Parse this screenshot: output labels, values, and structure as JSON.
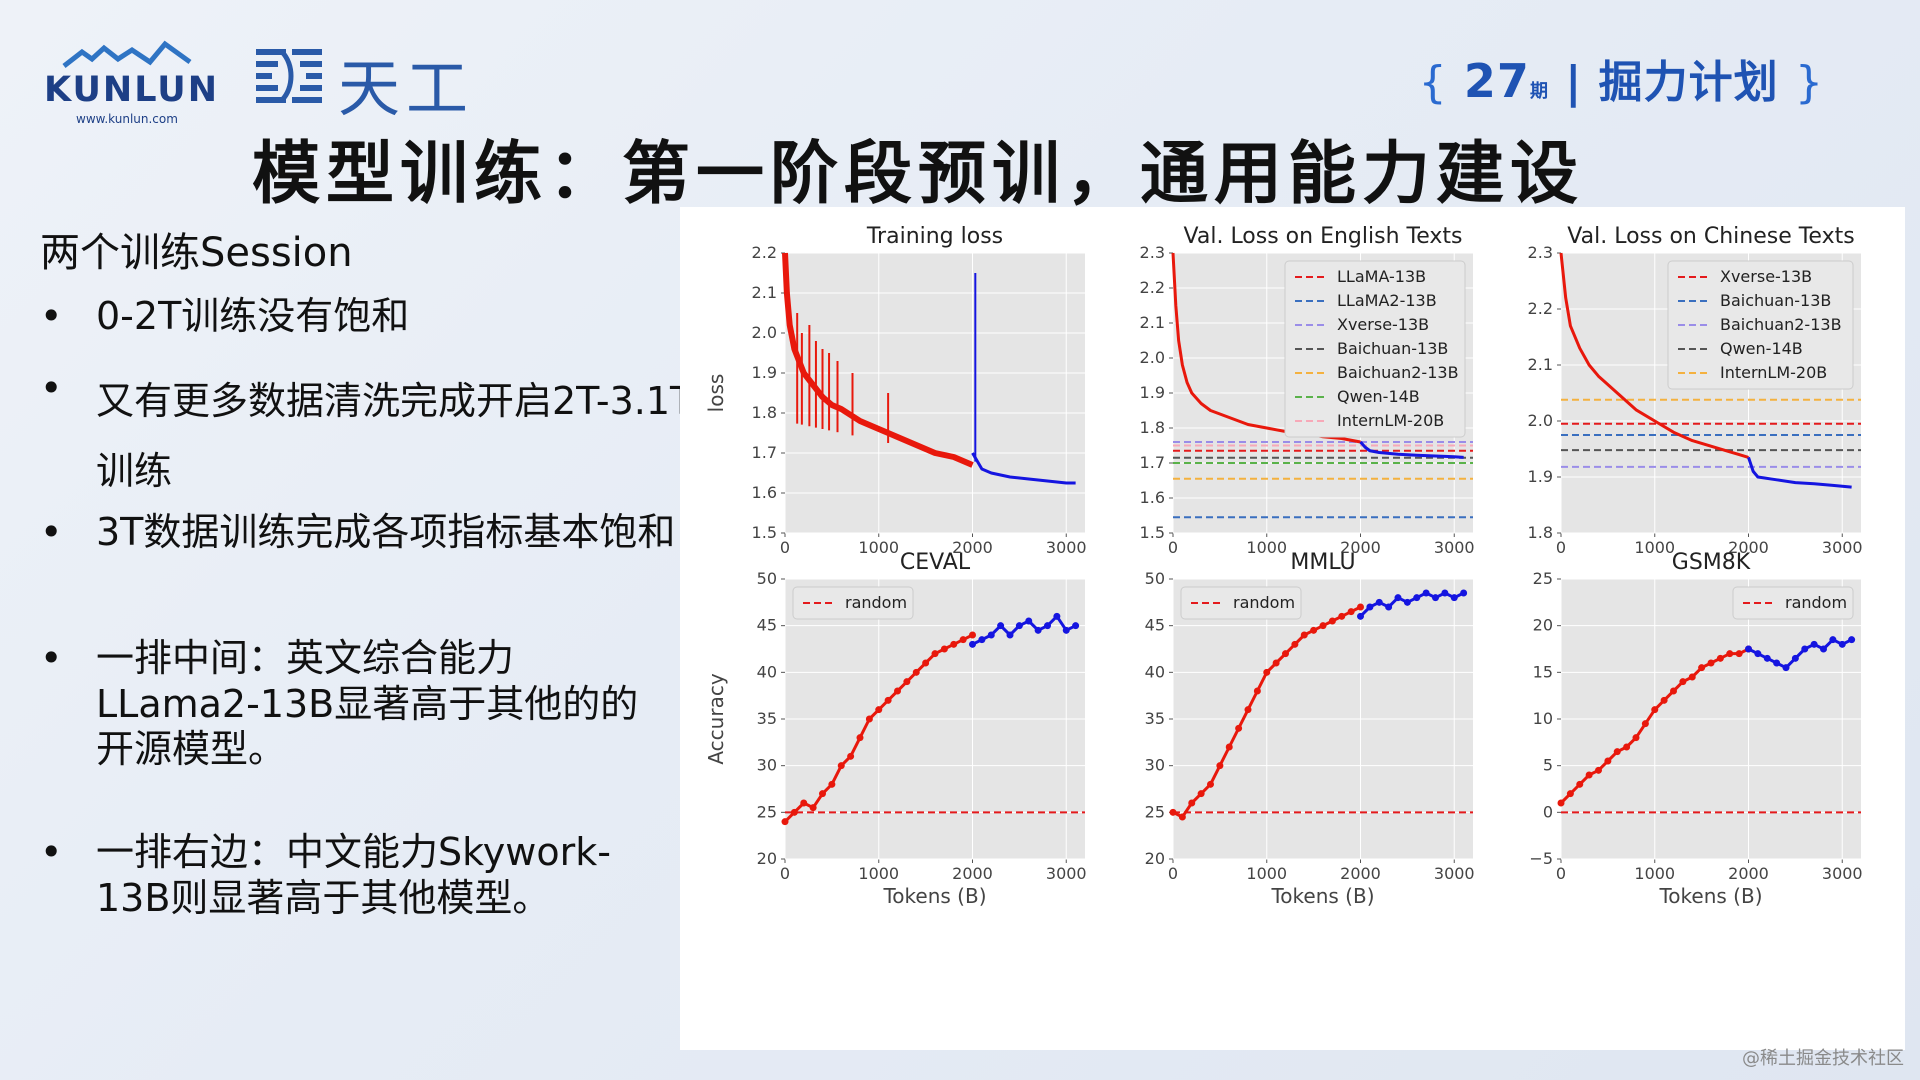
{
  "logo": {
    "word": "KUNLUN",
    "url": "www.kunlun.com"
  },
  "tiangong": {
    "name": "天工"
  },
  "brand": {
    "open": "{",
    "num": "27",
    "qi": "期",
    "sep": "|",
    "name": "掘力计划",
    "close": "}"
  },
  "title": "模型训练：第一阶段预训，通用能力建设",
  "left": {
    "session": "两个训练Session",
    "bullets": [
      {
        "dot": "•",
        "text": "0-2T训练没有饱和"
      },
      {
        "dot": "•",
        "text": "又有更多数据清洗完成开启2T-3.1T训练"
      },
      {
        "dot": "•",
        "text": "3T数据训练完成各项指标基本饱和"
      },
      {
        "dot": "•",
        "text": "一排中间：英文综合能力LLama2-13B显著高于其他的的开源模型。"
      },
      {
        "dot": "•",
        "text": "一排右边：中文能力Skywork-13B则显著高于其他模型。"
      }
    ]
  },
  "watermark": "@稀土掘金技术社区",
  "colors": {
    "red": "#e8180c",
    "blue": "#1515e0",
    "grid_bg": "#e5e5e5"
  },
  "chart_data": [
    {
      "type": "line",
      "title": "Training loss",
      "xlabel": "",
      "ylabel": "loss",
      "xlim": [
        0,
        3200
      ],
      "ylim": [
        1.5,
        2.2
      ],
      "xticks": [
        "0",
        "1000",
        "2000",
        "3000"
      ],
      "yticks": [
        "1.5",
        "1.6",
        "1.7",
        "1.8",
        "1.9",
        "2.0",
        "2.1",
        "2.2"
      ],
      "grid": true,
      "series": [
        {
          "color": "#e8180c",
          "x": [
            0,
            20,
            50,
            100,
            200,
            300,
            400,
            500,
            600,
            800,
            1000,
            1200,
            1400,
            1600,
            1800,
            2000
          ],
          "y": [
            2.2,
            2.1,
            2.02,
            1.96,
            1.9,
            1.87,
            1.84,
            1.82,
            1.81,
            1.78,
            1.76,
            1.74,
            1.72,
            1.7,
            1.69,
            1.67
          ]
        },
        {
          "color": "#1515e0",
          "x": [
            2000,
            2100,
            2200,
            2400,
            2600,
            2800,
            3000,
            3100
          ],
          "y": [
            1.7,
            1.66,
            1.65,
            1.64,
            1.635,
            1.63,
            1.625,
            1.625
          ]
        }
      ],
      "spikes": [
        {
          "color": "#e8180c",
          "x": [
            130,
            180,
            260,
            330,
            400,
            470,
            560,
            720,
            1100
          ],
          "y": [
            2.05,
            2.0,
            2.02,
            1.98,
            1.96,
            1.95,
            1.93,
            1.9,
            1.85
          ]
        },
        {
          "color": "#1515e0",
          "x": [
            2030
          ],
          "y": [
            2.15
          ]
        }
      ]
    },
    {
      "type": "line",
      "title": "Val. Loss on English Texts",
      "xlabel": "",
      "ylabel": "",
      "xlim": [
        0,
        3200
      ],
      "ylim": [
        1.5,
        2.3
      ],
      "xticks": [
        "0",
        "1000",
        "2000",
        "3000"
      ],
      "yticks": [
        "1.5",
        "1.6",
        "1.7",
        "1.8",
        "1.9",
        "2.0",
        "2.1",
        "2.2",
        "2.3"
      ],
      "grid": true,
      "series": [
        {
          "color": "#e8180c",
          "x": [
            0,
            30,
            60,
            100,
            150,
            200,
            300,
            400,
            600,
            800,
            1000,
            1200,
            1400,
            1600,
            1800,
            2000
          ],
          "y": [
            2.3,
            2.15,
            2.05,
            1.98,
            1.93,
            1.9,
            1.87,
            1.85,
            1.83,
            1.81,
            1.8,
            1.79,
            1.785,
            1.775,
            1.77,
            1.76
          ]
        },
        {
          "color": "#1515e0",
          "x": [
            2000,
            2050,
            2100,
            2200,
            2400,
            2600,
            2800,
            3000,
            3100
          ],
          "y": [
            1.76,
            1.745,
            1.735,
            1.73,
            1.725,
            1.722,
            1.72,
            1.718,
            1.716
          ]
        }
      ],
      "hlines": [
        {
          "name": "LLaMA-13B",
          "y": 1.735,
          "color": "#e41a1c"
        },
        {
          "name": "LLaMA2-13B",
          "y": 1.545,
          "color": "#3a6fbf"
        },
        {
          "name": "Xverse-13B",
          "y": 1.76,
          "color": "#9a8de8"
        },
        {
          "name": "Baichuan-13B",
          "y": 1.715,
          "color": "#555555"
        },
        {
          "name": "Baichuan2-13B",
          "y": 1.655,
          "color": "#f4b13f"
        },
        {
          "name": "Qwen-14B",
          "y": 1.7,
          "color": "#5ab24a"
        },
        {
          "name": "InternLM-20B",
          "y": 1.75,
          "color": "#f7a9b8"
        }
      ],
      "legend": "top-right"
    },
    {
      "type": "line",
      "title": "Val. Loss on Chinese Texts",
      "xlabel": "",
      "ylabel": "",
      "xlim": [
        0,
        3200
      ],
      "ylim": [
        1.8,
        2.3
      ],
      "xticks": [
        "0",
        "1000",
        "2000",
        "3000"
      ],
      "yticks": [
        "1.8",
        "1.9",
        "2.0",
        "2.1",
        "2.2",
        "2.3"
      ],
      "grid": true,
      "series": [
        {
          "color": "#e8180c",
          "x": [
            0,
            50,
            100,
            200,
            300,
            400,
            600,
            800,
            1000,
            1200,
            1400,
            1600,
            1800,
            1900,
            2000
          ],
          "y": [
            2.3,
            2.22,
            2.17,
            2.13,
            2.1,
            2.08,
            2.05,
            2.02,
            2.0,
            1.98,
            1.965,
            1.955,
            1.945,
            1.94,
            1.935
          ]
        },
        {
          "color": "#1515e0",
          "x": [
            2000,
            2050,
            2100,
            2300,
            2500,
            2700,
            2900,
            3100
          ],
          "y": [
            1.935,
            1.91,
            1.9,
            1.895,
            1.89,
            1.888,
            1.885,
            1.882
          ]
        }
      ],
      "hlines": [
        {
          "name": "Xverse-13B",
          "y": 1.995,
          "color": "#e41a1c"
        },
        {
          "name": "Baichuan-13B",
          "y": 1.975,
          "color": "#3a6fbf"
        },
        {
          "name": "Baichuan2-13B",
          "y": 1.918,
          "color": "#9a8de8"
        },
        {
          "name": "Qwen-14B",
          "y": 1.948,
          "color": "#555555"
        },
        {
          "name": "InternLM-20B",
          "y": 2.038,
          "color": "#f4b13f"
        }
      ],
      "legend": "top-right"
    },
    {
      "type": "line",
      "title": "CEVAL",
      "xlabel": "Tokens (B)",
      "ylabel": "Accuracy",
      "xlim": [
        0,
        3200
      ],
      "ylim": [
        20,
        50
      ],
      "xticks": [
        "0",
        "1000",
        "2000",
        "3000"
      ],
      "yticks": [
        "20",
        "25",
        "30",
        "35",
        "40",
        "45",
        "50"
      ],
      "grid": true,
      "series": [
        {
          "color": "#e8180c",
          "x": [
            0,
            100,
            200,
            300,
            400,
            500,
            600,
            700,
            800,
            900,
            1000,
            1100,
            1200,
            1300,
            1400,
            1500,
            1600,
            1700,
            1800,
            1900,
            2000
          ],
          "y": [
            24,
            25,
            26,
            25.5,
            27,
            28,
            30,
            31,
            33,
            35,
            36,
            37,
            38,
            39,
            40,
            41,
            42,
            42.5,
            43,
            43.5,
            44
          ]
        },
        {
          "color": "#1515e0",
          "x": [
            2000,
            2100,
            2200,
            2300,
            2400,
            2500,
            2600,
            2700,
            2800,
            2900,
            3000,
            3100
          ],
          "y": [
            43,
            43.5,
            44,
            45,
            44,
            45,
            45.5,
            44.5,
            45,
            46,
            44.5,
            45
          ]
        }
      ],
      "hlines": [
        {
          "name": "random",
          "y": 25,
          "color": "#e41a1c"
        }
      ],
      "legend": "top-left"
    },
    {
      "type": "line",
      "title": "MMLU",
      "xlabel": "Tokens (B)",
      "ylabel": "",
      "xlim": [
        0,
        3200
      ],
      "ylim": [
        20,
        50
      ],
      "xticks": [
        "0",
        "1000",
        "2000",
        "3000"
      ],
      "yticks": [
        "20",
        "25",
        "30",
        "35",
        "40",
        "45",
        "50"
      ],
      "grid": true,
      "series": [
        {
          "color": "#e8180c",
          "x": [
            0,
            100,
            200,
            300,
            400,
            500,
            600,
            700,
            800,
            900,
            1000,
            1100,
            1200,
            1300,
            1400,
            1500,
            1600,
            1700,
            1800,
            1900,
            2000
          ],
          "y": [
            25,
            24.5,
            26,
            27,
            28,
            30,
            32,
            34,
            36,
            38,
            40,
            41,
            42,
            43,
            44,
            44.5,
            45,
            45.5,
            46,
            46.5,
            47
          ]
        },
        {
          "color": "#1515e0",
          "x": [
            2000,
            2100,
            2200,
            2300,
            2400,
            2500,
            2600,
            2700,
            2800,
            2900,
            3000,
            3100
          ],
          "y": [
            46,
            47,
            47.5,
            47,
            48,
            47.5,
            48,
            48.5,
            48,
            48.5,
            48,
            48.5
          ]
        }
      ],
      "hlines": [
        {
          "name": "random",
          "y": 25,
          "color": "#e41a1c"
        }
      ],
      "legend": "top-left"
    },
    {
      "type": "line",
      "title": "GSM8K",
      "xlabel": "Tokens (B)",
      "ylabel": "",
      "xlim": [
        0,
        3200
      ],
      "ylim": [
        -5,
        25
      ],
      "xticks": [
        "0",
        "1000",
        "2000",
        "3000"
      ],
      "yticks": [
        "−5",
        "0",
        "5",
        "10",
        "15",
        "20",
        "25"
      ],
      "grid": true,
      "series": [
        {
          "color": "#e8180c",
          "x": [
            0,
            100,
            200,
            300,
            400,
            500,
            600,
            700,
            800,
            900,
            1000,
            1100,
            1200,
            1300,
            1400,
            1500,
            1600,
            1700,
            1800,
            1900,
            2000
          ],
          "y": [
            1,
            2,
            3,
            4,
            4.5,
            5.5,
            6.5,
            7,
            8,
            9.5,
            11,
            12,
            13,
            14,
            14.5,
            15.5,
            16,
            16.5,
            17,
            17,
            17.5
          ]
        },
        {
          "color": "#1515e0",
          "x": [
            2000,
            2100,
            2200,
            2300,
            2400,
            2500,
            2600,
            2700,
            2800,
            2900,
            3000,
            3100
          ],
          "y": [
            17.5,
            17,
            16.5,
            16,
            15.5,
            16.5,
            17.5,
            18,
            17.5,
            18.5,
            18,
            18.5
          ]
        }
      ],
      "hlines": [
        {
          "name": "random",
          "y": 0,
          "color": "#e41a1c"
        }
      ],
      "legend": "top-right"
    }
  ]
}
